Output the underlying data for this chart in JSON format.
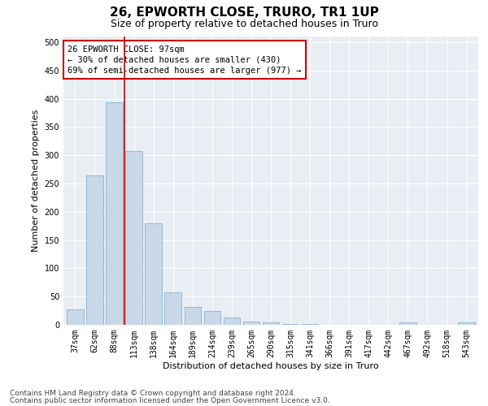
{
  "title": "26, EPWORTH CLOSE, TRURO, TR1 1UP",
  "subtitle": "Size of property relative to detached houses in Truro",
  "xlabel": "Distribution of detached houses by size in Truro",
  "ylabel": "Number of detached properties",
  "categories": [
    "37sqm",
    "62sqm",
    "88sqm",
    "113sqm",
    "138sqm",
    "164sqm",
    "189sqm",
    "214sqm",
    "239sqm",
    "265sqm",
    "290sqm",
    "315sqm",
    "341sqm",
    "366sqm",
    "391sqm",
    "417sqm",
    "442sqm",
    "467sqm",
    "492sqm",
    "518sqm",
    "543sqm"
  ],
  "values": [
    27,
    265,
    393,
    308,
    180,
    57,
    32,
    25,
    13,
    6,
    4,
    1,
    1,
    0,
    0,
    0,
    0,
    4,
    0,
    0,
    4
  ],
  "bar_color": "#c8d8e8",
  "bar_edge_color": "#7aa8c8",
  "property_line_x": 2.5,
  "annotation_line1": "26 EPWORTH CLOSE: 97sqm",
  "annotation_line2": "← 30% of detached houses are smaller (430)",
  "annotation_line3": "69% of semi-detached houses are larger (977) →",
  "annotation_box_color": "#ffffff",
  "annotation_box_edge_color": "#cc0000",
  "property_line_color": "#cc0000",
  "ylim": [
    0,
    510
  ],
  "yticks": [
    0,
    50,
    100,
    150,
    200,
    250,
    300,
    350,
    400,
    450,
    500
  ],
  "bg_color": "#e8eef4",
  "footer_line1": "Contains HM Land Registry data © Crown copyright and database right 2024.",
  "footer_line2": "Contains public sector information licensed under the Open Government Licence v3.0.",
  "title_fontsize": 11,
  "subtitle_fontsize": 9,
  "axis_label_fontsize": 8,
  "tick_fontsize": 7,
  "annotation_fontsize": 7.5,
  "footer_fontsize": 6.5
}
